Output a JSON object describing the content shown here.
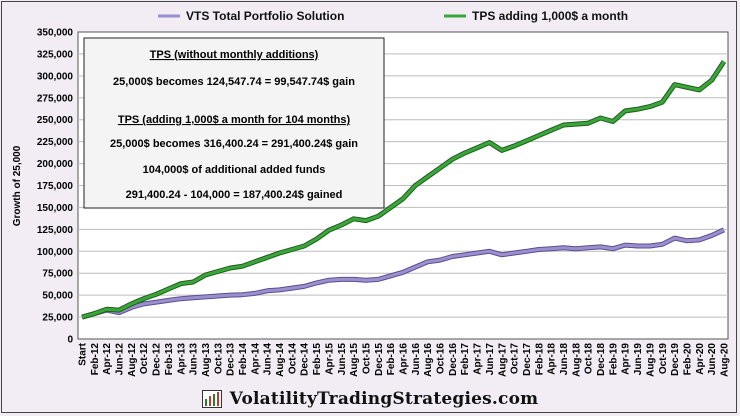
{
  "chart_data": {
    "type": "line",
    "ylabel": "Growth of 25,000",
    "ylim": [
      0,
      350000
    ],
    "yticks": [
      "0",
      "25,000",
      "50,000",
      "75,000",
      "100,000",
      "125,000",
      "150,000",
      "175,000",
      "200,000",
      "225,000",
      "250,000",
      "275,000",
      "300,000",
      "325,000",
      "350,000"
    ],
    "grid": true,
    "legend_position": "top",
    "x_labels": [
      "Start",
      "Feb-12",
      "Apr-12",
      "Jun-12",
      "Aug-12",
      "Oct-12",
      "Dec-12",
      "Feb-13",
      "Apr-13",
      "Jun-13",
      "Aug-13",
      "Oct-13",
      "Dec-13",
      "Feb-14",
      "Apr-14",
      "Jun-14",
      "Aug-14",
      "Oct-14",
      "Dec-14",
      "Feb-15",
      "Apr-15",
      "Jun-15",
      "Aug-15",
      "Oct-15",
      "Dec-15",
      "Feb-16",
      "Apr-16",
      "Jun-16",
      "Aug-16",
      "Oct-16",
      "Dec-16",
      "Feb-17",
      "Apr-17",
      "Jun-17",
      "Aug-17",
      "Oct-17",
      "Dec-17",
      "Feb-18",
      "Apr-18",
      "Jun-18",
      "Aug-18",
      "Oct-18",
      "Dec-18",
      "Feb-19",
      "Apr-19",
      "Jun-19",
      "Aug-19",
      "Oct-19",
      "Dec-19",
      "Feb-20",
      "Apr-20",
      "Jun-20",
      "Aug-20"
    ],
    "series": [
      {
        "name": "VTS Total Portfolio Solution",
        "color": "#9b8fcf",
        "values": [
          25000,
          29000,
          33000,
          30000,
          36000,
          40000,
          42000,
          44000,
          46000,
          47000,
          48000,
          49000,
          50000,
          50500,
          52000,
          55000,
          56000,
          58000,
          60000,
          64000,
          67000,
          68000,
          68000,
          67000,
          68000,
          72000,
          76000,
          82000,
          88000,
          90000,
          94000,
          96000,
          98000,
          100000,
          96000,
          98000,
          100000,
          102000,
          103000,
          104000,
          103000,
          104000,
          105000,
          103000,
          107000,
          106000,
          106000,
          108000,
          115000,
          112000,
          113000,
          118000,
          124547.74
        ]
      },
      {
        "name": "TPS adding 1,000$ a month",
        "color": "#3aa63a",
        "values": [
          25000,
          29000,
          34000,
          33000,
          40000,
          46000,
          51000,
          57000,
          63000,
          65000,
          73000,
          77000,
          81000,
          83000,
          88000,
          93000,
          98000,
          102000,
          106000,
          114000,
          124000,
          130000,
          137000,
          135000,
          140000,
          150000,
          160000,
          175000,
          185000,
          195000,
          205000,
          212000,
          218000,
          224000,
          215000,
          220000,
          226000,
          232000,
          238000,
          244000,
          245000,
          246000,
          252000,
          248000,
          260000,
          262000,
          265000,
          270000,
          290000,
          287000,
          284000,
          295000,
          316400.24
        ]
      }
    ],
    "annotation": {
      "heading1": "TPS   (without monthly additions)",
      "line1": "25,000$ becomes 124,547.74  =  99,547.74$ gain",
      "heading2": "TPS   (adding 1,000$ a month for 104 months)",
      "line2": "25,000$ becomes 316,400.24  =  291,400.24$ gain",
      "line3": "104,000$ of additional added funds",
      "line4": "291,400.24  -  104,000  =  187,400.24$ gained"
    }
  },
  "footer": {
    "text": "VolatilityTradingStrategies.com",
    "icon": "chart-logo-icon"
  }
}
